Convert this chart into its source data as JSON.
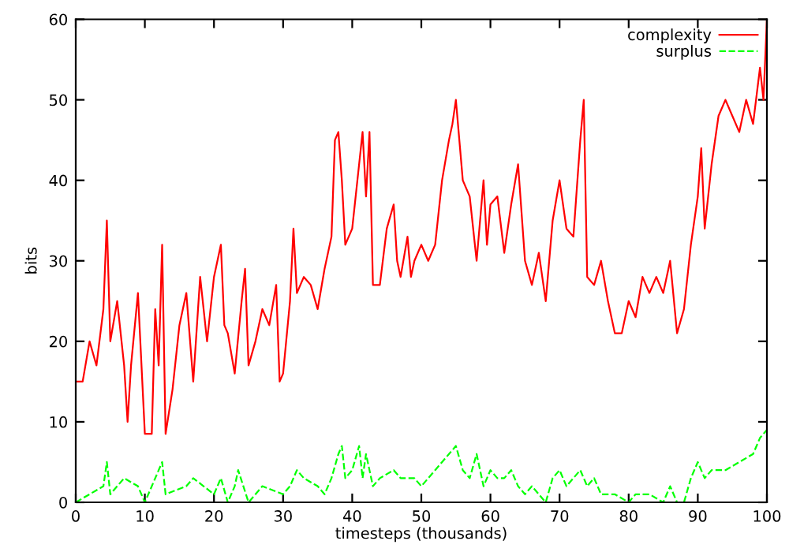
{
  "chart_data": {
    "type": "line",
    "xlabel": "timesteps (thousands)",
    "ylabel": "bits",
    "xlim": [
      0,
      100
    ],
    "ylim": [
      0,
      60
    ],
    "xticks": [
      0,
      10,
      20,
      30,
      40,
      50,
      60,
      70,
      80,
      90,
      100
    ],
    "yticks": [
      0,
      10,
      20,
      30,
      40,
      50,
      60
    ],
    "grid": false,
    "legend": "top right",
    "series": [
      {
        "name": "complexity",
        "color": "#ff0000",
        "line_style": "solid",
        "x": [
          0,
          1,
          2,
          3,
          4,
          4.5,
          5,
          6,
          7,
          7.5,
          8,
          9,
          10,
          11,
          11.5,
          12,
          12.5,
          13,
          14,
          15,
          16,
          17,
          18,
          19,
          20,
          21,
          21.5,
          22,
          23,
          24,
          24.5,
          25,
          26,
          27,
          28,
          29,
          29.5,
          30,
          31,
          31.5,
          32,
          33,
          34,
          35,
          36,
          37,
          37.5,
          38,
          38.5,
          39,
          40,
          41,
          41.5,
          42,
          42.5,
          43,
          44,
          45,
          46,
          46.5,
          47,
          48,
          48.5,
          49,
          50,
          51,
          52,
          53,
          54,
          54.5,
          55,
          56,
          57,
          58,
          59,
          59.5,
          60,
          61,
          62,
          63,
          64,
          65,
          66,
          67,
          68,
          69,
          70,
          71,
          72,
          73,
          73.5,
          74,
          75,
          76,
          77,
          78,
          79,
          80,
          81,
          82,
          83,
          84,
          85,
          86,
          87,
          88,
          89,
          90,
          90.5,
          91,
          92,
          93,
          94,
          95,
          96,
          97,
          98,
          99,
          99.5,
          100
        ],
        "values": [
          15,
          15,
          20,
          17,
          24,
          35,
          20,
          25,
          17,
          10,
          17,
          26,
          8.5,
          8.5,
          24,
          17,
          32,
          8.5,
          14,
          22,
          26,
          15,
          28,
          20,
          28,
          32,
          22,
          21,
          16,
          25,
          29,
          17,
          20,
          24,
          22,
          27,
          15,
          16,
          25,
          34,
          26,
          28,
          27,
          24,
          29,
          33,
          45,
          46,
          40,
          32,
          34,
          42,
          46,
          38,
          46,
          27,
          27,
          34,
          37,
          30,
          28,
          33,
          28,
          30,
          32,
          30,
          32,
          40,
          45,
          47,
          50,
          40,
          38,
          30,
          40,
          32,
          37,
          38,
          31,
          37,
          42,
          30,
          27,
          31,
          25,
          35,
          40,
          34,
          33,
          45,
          50,
          28,
          27,
          30,
          25,
          21,
          21,
          25,
          23,
          28,
          26,
          28,
          26,
          30,
          21,
          24,
          32,
          38,
          44,
          34,
          42,
          48,
          50,
          48,
          46,
          50,
          47,
          54,
          50,
          60
        ]
      },
      {
        "name": "surplus",
        "color": "#00ff00",
        "line_style": "dashed",
        "x": [
          0,
          2,
          4,
          4.5,
          5,
          7,
          9,
          10,
          12,
          12.5,
          13,
          16,
          17,
          20,
          21,
          22,
          23,
          23.5,
          25,
          27,
          30,
          31,
          32,
          33,
          35,
          36,
          37,
          38,
          38.5,
          39,
          40,
          41,
          41.5,
          42,
          43,
          44,
          46,
          47,
          49,
          50,
          51,
          52,
          53,
          54,
          55,
          56,
          57,
          58,
          59,
          60,
          61,
          62,
          63,
          64,
          65,
          66,
          67,
          68,
          69,
          70,
          71,
          72,
          73,
          74,
          75,
          76,
          78,
          80,
          81,
          83,
          85,
          86,
          87,
          88,
          89,
          90,
          91,
          92,
          94,
          96,
          98,
          99,
          100
        ],
        "values": [
          0,
          1,
          2,
          5,
          1,
          3,
          2,
          0,
          4,
          5,
          1,
          2,
          3,
          1,
          3,
          0,
          2,
          4,
          0,
          2,
          1,
          2,
          4,
          3,
          2,
          1,
          3,
          6,
          7,
          3,
          4,
          7,
          3,
          6,
          2,
          3,
          4,
          3,
          3,
          2,
          3,
          4,
          5,
          6,
          7,
          4,
          3,
          6,
          2,
          4,
          3,
          3,
          4,
          2,
          1,
          2,
          1,
          0,
          3,
          4,
          2,
          3,
          4,
          2,
          3,
          1,
          1,
          0,
          1,
          1,
          0,
          2,
          0,
          0,
          3,
          5,
          3,
          4,
          4,
          5,
          6,
          8,
          9
        ]
      }
    ]
  }
}
